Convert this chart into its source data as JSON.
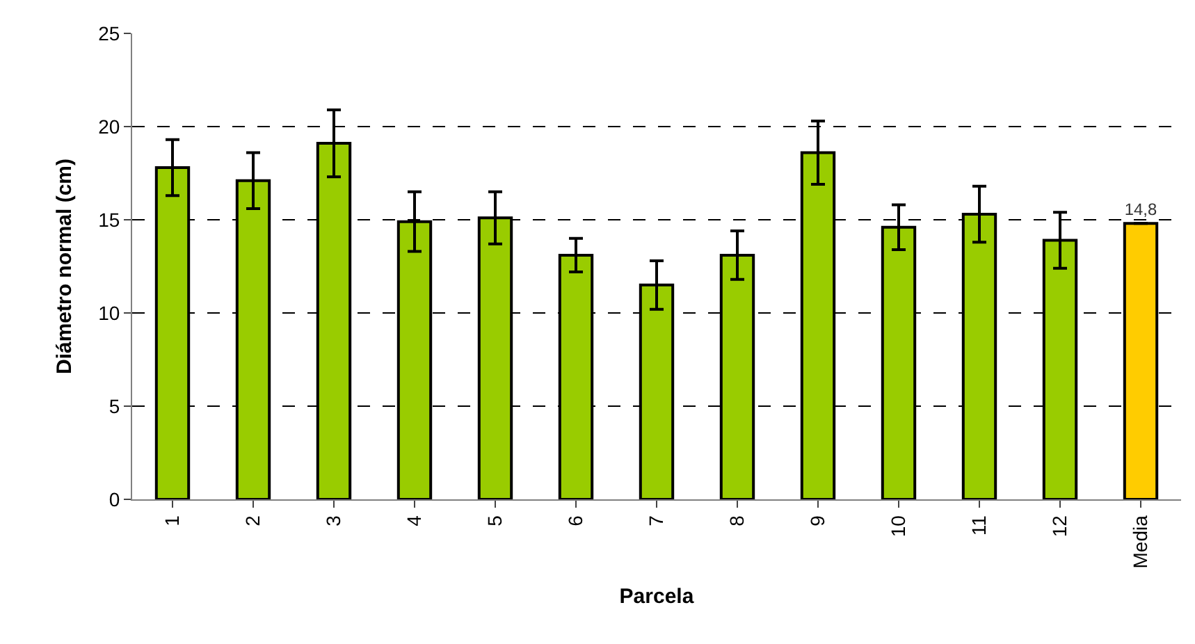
{
  "chart_data": {
    "type": "bar",
    "xlabel": "Parcela",
    "ylabel": "Diámetro normal (cm)",
    "categories": [
      "1",
      "2",
      "3",
      "4",
      "5",
      "6",
      "7",
      "8",
      "9",
      "10",
      "11",
      "12",
      "Media"
    ],
    "values": [
      17.8,
      17.1,
      19.1,
      14.9,
      15.1,
      13.1,
      11.5,
      13.1,
      18.6,
      14.6,
      15.3,
      13.9,
      14.8
    ],
    "colors": [
      "#99cc00",
      "#99cc00",
      "#99cc00",
      "#99cc00",
      "#99cc00",
      "#99cc00",
      "#99cc00",
      "#99cc00",
      "#99cc00",
      "#99cc00",
      "#99cc00",
      "#99cc00",
      "#ffcc00"
    ],
    "errors": [
      1.5,
      1.5,
      1.8,
      1.6,
      1.4,
      0.9,
      1.3,
      1.3,
      1.7,
      1.2,
      1.5,
      1.5,
      null
    ],
    "value_labels": [
      null,
      null,
      null,
      null,
      null,
      null,
      null,
      null,
      null,
      null,
      null,
      null,
      "14,8"
    ],
    "ylim": [
      0,
      25
    ],
    "yticks": [
      0,
      5,
      10,
      15,
      20,
      25
    ],
    "grid": "y"
  }
}
